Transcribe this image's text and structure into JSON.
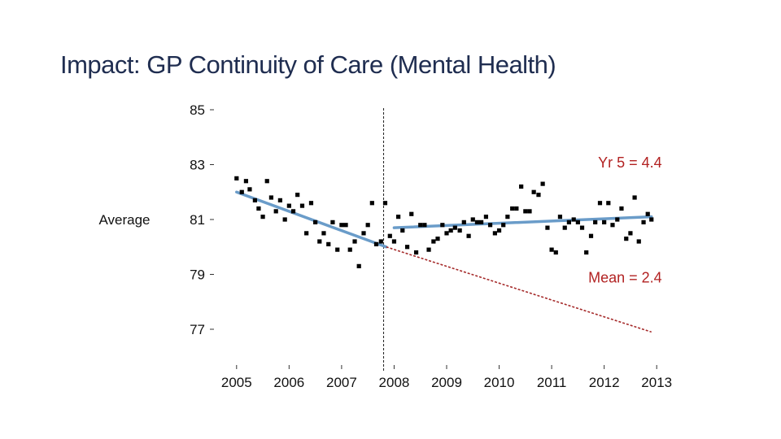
{
  "slide": {
    "title": "Impact: GP Continuity of Care (Mental Health)"
  },
  "chart_data": {
    "type": "scatter",
    "title": "Impact: GP Continuity of Care (Mental Health)",
    "ylim": [
      76,
      86
    ],
    "xlim": [
      2004.9,
      2013.2
    ],
    "yticks": [
      85,
      83,
      81,
      79,
      77
    ],
    "xticks": [
      2005,
      2006,
      2007,
      2008,
      2009,
      2010,
      2011,
      2012,
      2013
    ],
    "side_label": {
      "text": "Average",
      "y": 81
    },
    "intervention": 2007.8,
    "annotations": [
      {
        "text": "Yr 5 = 4.4",
        "anchor": "end",
        "x": 2013.1,
        "y": 82.9
      },
      {
        "text": "Mean = 2.4",
        "anchor": "end",
        "x": 2013.1,
        "y": 78.7
      }
    ],
    "colors": {
      "trend": "#6a9cc9",
      "counterfactual": "#a52a2a",
      "points": "#000000",
      "annot": "#b22222"
    },
    "series": [
      {
        "kind": "points",
        "points": [
          [
            2005.0,
            82.5
          ],
          [
            2005.1,
            82.0
          ],
          [
            2005.18,
            82.4
          ],
          [
            2005.25,
            82.1
          ],
          [
            2005.35,
            81.7
          ],
          [
            2005.42,
            81.4
          ],
          [
            2005.5,
            81.1
          ],
          [
            2005.58,
            82.4
          ],
          [
            2005.66,
            81.8
          ],
          [
            2005.75,
            81.3
          ],
          [
            2005.83,
            81.7
          ],
          [
            2005.92,
            81.0
          ],
          [
            2006.0,
            81.5
          ],
          [
            2006.08,
            81.3
          ],
          [
            2006.16,
            81.9
          ],
          [
            2006.25,
            81.5
          ],
          [
            2006.33,
            80.5
          ],
          [
            2006.42,
            81.6
          ],
          [
            2006.5,
            80.9
          ],
          [
            2006.58,
            80.2
          ],
          [
            2006.66,
            80.5
          ],
          [
            2006.75,
            80.1
          ],
          [
            2006.83,
            80.9
          ],
          [
            2006.92,
            79.9
          ],
          [
            2007.0,
            80.8
          ],
          [
            2007.08,
            80.8
          ],
          [
            2007.16,
            79.9
          ],
          [
            2007.25,
            80.2
          ],
          [
            2007.33,
            79.3
          ],
          [
            2007.42,
            80.5
          ],
          [
            2007.5,
            80.8
          ],
          [
            2007.58,
            81.6
          ],
          [
            2007.66,
            80.1
          ],
          [
            2007.75,
            80.2
          ],
          [
            2007.83,
            81.6
          ],
          [
            2007.92,
            80.4
          ],
          [
            2008.0,
            80.2
          ],
          [
            2008.08,
            81.1
          ],
          [
            2008.16,
            80.6
          ],
          [
            2008.25,
            80.0
          ],
          [
            2008.33,
            81.2
          ],
          [
            2008.42,
            79.8
          ],
          [
            2008.5,
            80.8
          ],
          [
            2008.58,
            80.8
          ],
          [
            2008.66,
            79.9
          ],
          [
            2008.75,
            80.2
          ],
          [
            2008.83,
            80.3
          ],
          [
            2008.92,
            80.8
          ],
          [
            2009.0,
            80.5
          ],
          [
            2009.08,
            80.6
          ],
          [
            2009.16,
            80.7
          ],
          [
            2009.25,
            80.6
          ],
          [
            2009.33,
            80.9
          ],
          [
            2009.42,
            80.4
          ],
          [
            2009.5,
            81.0
          ],
          [
            2009.58,
            80.9
          ],
          [
            2009.66,
            80.9
          ],
          [
            2009.75,
            81.1
          ],
          [
            2009.83,
            80.8
          ],
          [
            2009.92,
            80.5
          ],
          [
            2010.0,
            80.6
          ],
          [
            2010.08,
            80.8
          ],
          [
            2010.16,
            81.1
          ],
          [
            2010.25,
            81.4
          ],
          [
            2010.33,
            81.4
          ],
          [
            2010.42,
            82.2
          ],
          [
            2010.5,
            81.3
          ],
          [
            2010.58,
            81.3
          ],
          [
            2010.66,
            82.0
          ],
          [
            2010.75,
            81.9
          ],
          [
            2010.83,
            82.3
          ],
          [
            2010.92,
            80.7
          ],
          [
            2011.0,
            79.9
          ],
          [
            2011.08,
            79.8
          ],
          [
            2011.16,
            81.1
          ],
          [
            2011.25,
            80.7
          ],
          [
            2011.33,
            80.9
          ],
          [
            2011.42,
            81.0
          ],
          [
            2011.5,
            80.9
          ],
          [
            2011.58,
            80.7
          ],
          [
            2011.66,
            79.8
          ],
          [
            2011.75,
            80.4
          ],
          [
            2011.83,
            80.9
          ],
          [
            2011.92,
            81.6
          ],
          [
            2012.0,
            80.9
          ],
          [
            2012.08,
            81.6
          ],
          [
            2012.16,
            80.8
          ],
          [
            2012.25,
            81.0
          ],
          [
            2012.33,
            81.4
          ],
          [
            2012.42,
            80.3
          ],
          [
            2012.5,
            80.5
          ],
          [
            2012.58,
            81.8
          ],
          [
            2012.66,
            80.2
          ],
          [
            2012.75,
            80.9
          ],
          [
            2012.83,
            81.2
          ],
          [
            2012.9,
            81.0
          ]
        ]
      },
      {
        "kind": "trend",
        "line": [
          [
            2005.0,
            82.0
          ],
          [
            2007.85,
            80.0
          ]
        ]
      },
      {
        "kind": "trend",
        "line": [
          [
            2008.0,
            80.7
          ],
          [
            2012.9,
            81.1
          ]
        ]
      },
      {
        "kind": "counterfactual",
        "line": [
          [
            2007.85,
            80.0
          ],
          [
            2012.9,
            76.9
          ]
        ]
      }
    ]
  }
}
